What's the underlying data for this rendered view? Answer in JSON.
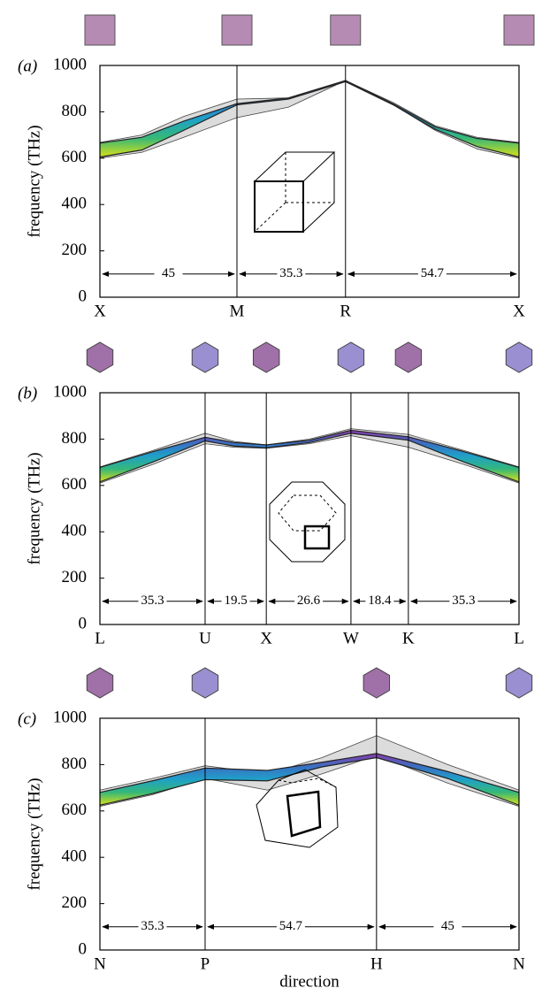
{
  "chart_data": [
    {
      "type": "band",
      "label": "(a)",
      "ylabel": "frequency (THz)",
      "xlim": [
        0,
        1
      ],
      "ylim": [
        0,
        1000
      ],
      "yticks": [
        0,
        200,
        400,
        600,
        800,
        1000
      ],
      "xticks": [
        {
          "value": 0,
          "label": "X"
        },
        {
          "value": 0.327,
          "label": "M"
        },
        {
          "value": 0.586,
          "label": "R"
        },
        {
          "value": 1,
          "label": "X"
        }
      ],
      "segments": [
        "45",
        "35.3",
        "54.7"
      ],
      "bands": [
        {
          "color": "#dcdcdc",
          "x": [
            0,
            0.1,
            0.2,
            0.327,
            0.45,
            0.586,
            0.7,
            0.8,
            0.9,
            1
          ],
          "upper": [
            668,
            700,
            780,
            855,
            860,
            935,
            840,
            740,
            690,
            668
          ],
          "lower": [
            600,
            625,
            690,
            775,
            820,
            935,
            830,
            720,
            640,
            600
          ]
        },
        {
          "colors": [
            "#d8e219",
            "#35b779",
            "#1fa0c9",
            "#3b6fc2",
            "#8b3aa8"
          ],
          "x": [
            0,
            0.1,
            0.2,
            0.327,
            0.45,
            0.586,
            0.7,
            0.8,
            0.9,
            1
          ],
          "upper": [
            665,
            690,
            760,
            835,
            860,
            935,
            835,
            735,
            685,
            665
          ],
          "lower": [
            605,
            635,
            720,
            830,
            855,
            930,
            830,
            725,
            650,
            605
          ]
        }
      ]
    },
    {
      "type": "band",
      "label": "(b)",
      "ylabel": "frequency (THz)",
      "xlim": [
        0,
        1
      ],
      "ylim": [
        0,
        1000
      ],
      "yticks": [
        0,
        200,
        400,
        600,
        800,
        1000
      ],
      "xticks": [
        {
          "value": 0,
          "label": "L"
        },
        {
          "value": 0.251,
          "label": "U"
        },
        {
          "value": 0.397,
          "label": "X"
        },
        {
          "value": 0.599,
          "label": "W"
        },
        {
          "value": 0.736,
          "label": "K"
        },
        {
          "value": 1,
          "label": "L"
        }
      ],
      "segments": [
        "35.3",
        "19.5",
        "26.6",
        "18.4",
        "35.3"
      ],
      "bands": [
        {
          "color": "#dcdcdc",
          "x": [
            0,
            0.125,
            0.251,
            0.32,
            0.397,
            0.5,
            0.599,
            0.736,
            0.87,
            1
          ],
          "upper": [
            680,
            750,
            825,
            790,
            775,
            800,
            845,
            820,
            750,
            680
          ],
          "lower": [
            610,
            690,
            780,
            765,
            760,
            780,
            815,
            765,
            690,
            610
          ]
        },
        {
          "colors": [
            "#d8e219",
            "#35b779",
            "#1fa0c9",
            "#3b6fc2",
            "#8b3aa8"
          ],
          "x": [
            0,
            0.125,
            0.251,
            0.32,
            0.397,
            0.5,
            0.599,
            0.736,
            0.87,
            1
          ],
          "upper": [
            678,
            745,
            808,
            785,
            775,
            795,
            838,
            810,
            745,
            678
          ],
          "lower": [
            615,
            700,
            792,
            770,
            762,
            785,
            825,
            795,
            700,
            615
          ]
        }
      ]
    },
    {
      "type": "band",
      "label": "(c)",
      "ylabel": "frequency (THz)",
      "xlabel": "direction",
      "xlim": [
        0,
        1
      ],
      "ylim": [
        0,
        1000
      ],
      "yticks": [
        0,
        200,
        400,
        600,
        800,
        1000
      ],
      "xticks": [
        {
          "value": 0,
          "label": "N"
        },
        {
          "value": 0.251,
          "label": "P"
        },
        {
          "value": 0.66,
          "label": "H"
        },
        {
          "value": 1,
          "label": "N"
        }
      ],
      "segments": [
        "35.3",
        "54.7",
        "45"
      ],
      "bands": [
        {
          "color": "#dcdcdc",
          "x": [
            0,
            0.125,
            0.251,
            0.4,
            0.53,
            0.66,
            0.83,
            1
          ],
          "upper": [
            690,
            740,
            795,
            760,
            830,
            925,
            800,
            690
          ],
          "lower": [
            620,
            670,
            740,
            690,
            760,
            840,
            720,
            620
          ]
        },
        {
          "colors": [
            "#d8e219",
            "#35b779",
            "#1fa0c9",
            "#3b6fc2",
            "#8b3aa8"
          ],
          "x": [
            0,
            0.125,
            0.251,
            0.4,
            0.53,
            0.66,
            0.83,
            1
          ],
          "upper": [
            680,
            730,
            785,
            775,
            810,
            848,
            770,
            680
          ],
          "lower": [
            625,
            675,
            735,
            730,
            790,
            830,
            740,
            625
          ]
        }
      ]
    }
  ]
}
